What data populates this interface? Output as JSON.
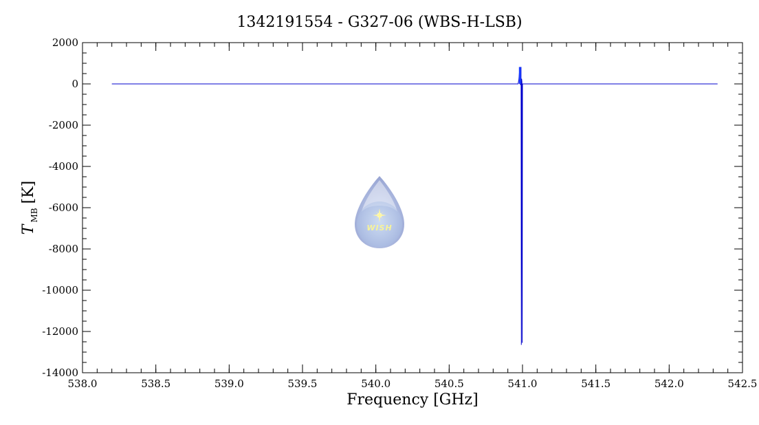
{
  "chart_data": {
    "type": "line",
    "title": "1342191554 - G327-06 (WBS-H-LSB)",
    "xlabel": "Frequency [GHz]",
    "ylabel_symbol": "T",
    "ylabel_subscript": "MB",
    "ylabel_unit": "[K]",
    "xlim": [
      538.0,
      542.5
    ],
    "ylim": [
      -14000,
      2000
    ],
    "x_ticks": [
      538.0,
      538.5,
      539.0,
      539.5,
      540.0,
      540.5,
      541.0,
      541.5,
      542.0,
      542.5
    ],
    "x_tick_labels": [
      "538.0",
      "538.5",
      "539.0",
      "539.5",
      "540.0",
      "540.5",
      "541.0",
      "541.5",
      "542.0",
      "542.5"
    ],
    "y_ticks": [
      2000,
      0,
      -2000,
      -4000,
      -6000,
      -8000,
      -10000,
      -12000,
      -14000
    ],
    "y_tick_labels": [
      "2000",
      "0",
      "-2000",
      "-4000",
      "-6000",
      "-8000",
      "-10000",
      "-12000",
      "-14000"
    ],
    "grid": false,
    "series": [
      {
        "color": "#0000cc",
        "x": [
          538.2,
          540.97,
          540.975,
          540.98,
          540.985,
          540.99,
          540.992,
          540.994,
          540.996,
          540.998,
          541.0,
          541.005,
          542.33
        ],
        "y": [
          0,
          0,
          200,
          650,
          -50,
          820,
          -12650,
          250,
          100,
          -12550,
          0,
          0,
          0
        ]
      }
    ],
    "watermark": "WISH"
  },
  "colors": {
    "line": "#0000cc",
    "spike": "#1a3cff"
  }
}
